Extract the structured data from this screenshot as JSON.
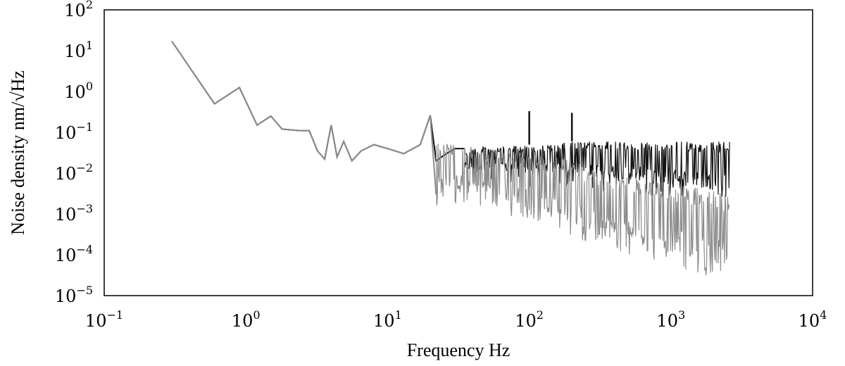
{
  "chart_data": {
    "type": "line",
    "xlabel": "Frequency Hz",
    "ylabel": "Noise density nm/√Hz",
    "x_scale": "log",
    "y_scale": "log",
    "xlim": [
      0.1,
      10000
    ],
    "ylim": [
      1e-05,
      100
    ],
    "x_ticks": [
      {
        "value": 0.1,
        "base": "10",
        "exp": "−1"
      },
      {
        "value": 1,
        "base": "10",
        "exp": "0"
      },
      {
        "value": 10,
        "base": "10",
        "exp": "1"
      },
      {
        "value": 100,
        "base": "10",
        "exp": "2"
      },
      {
        "value": 1000,
        "base": "10",
        "exp": "3"
      },
      {
        "value": 10000,
        "base": "10",
        "exp": "4"
      }
    ],
    "y_ticks": [
      {
        "value": 100,
        "base": "10",
        "exp": "2"
      },
      {
        "value": 10,
        "base": "10",
        "exp": "1"
      },
      {
        "value": 1,
        "base": "10",
        "exp": "0"
      },
      {
        "value": 0.1,
        "base": "10",
        "exp": "−1"
      },
      {
        "value": 0.01,
        "base": "10",
        "exp": "−2"
      },
      {
        "value": 0.001,
        "base": "10",
        "exp": "−3"
      },
      {
        "value": 0.0001,
        "base": "10",
        "exp": "−4"
      },
      {
        "value": 1e-05,
        "base": "10",
        "exp": "−5"
      }
    ],
    "grid": false,
    "legend": "none",
    "series": [
      {
        "color": "#111111",
        "band_from_x": 35,
        "x": [
          0.3,
          0.6,
          0.9,
          1.2,
          1.5,
          1.8,
          2.4,
          2.8,
          3.2,
          3.6,
          4.0,
          4.4,
          4.9,
          5.6,
          6.5,
          8,
          10,
          13,
          17,
          20,
          22,
          26,
          30,
          35,
          50,
          70,
          100,
          150,
          200,
          300,
          500,
          800,
          1200,
          1800,
          2600
        ],
        "y": [
          17,
          0.5,
          1.25,
          0.15,
          0.25,
          0.12,
          0.11,
          0.11,
          0.035,
          0.022,
          0.15,
          0.025,
          0.06,
          0.02,
          0.035,
          0.05,
          0.04,
          0.03,
          0.05,
          0.26,
          0.02,
          0.03,
          0.04,
          0.04,
          0.045,
          0.045,
          0.05,
          0.05,
          0.06,
          0.06,
          0.06,
          0.06,
          0.06,
          0.06,
          0.06
        ],
        "band_x": [
          35,
          50,
          70,
          100,
          150,
          200,
          300,
          500,
          800,
          1200,
          1800,
          2600
        ],
        "band_upper": [
          0.04,
          0.045,
          0.045,
          0.05,
          0.05,
          0.06,
          0.06,
          0.06,
          0.06,
          0.06,
          0.06,
          0.06
        ],
        "band_lower": [
          0.012,
          0.012,
          0.011,
          0.01,
          0.01,
          0.009,
          0.008,
          0.007,
          0.006,
          0.005,
          0.004,
          0.0035
        ],
        "peaks": [
          {
            "x": 100,
            "y": 0.33
          },
          {
            "x": 200,
            "y": 0.3
          }
        ]
      },
      {
        "color": "#8c8c8c",
        "band_from_x": 22,
        "x": [
          0.3,
          0.6,
          0.9,
          1.2,
          1.5,
          1.8,
          2.4,
          2.8,
          3.2,
          3.6,
          4.0,
          4.4,
          4.9,
          5.6,
          6.5,
          8,
          10,
          13,
          17,
          20,
          22
        ],
        "y": [
          17,
          0.5,
          1.25,
          0.15,
          0.25,
          0.12,
          0.11,
          0.11,
          0.035,
          0.022,
          0.15,
          0.025,
          0.06,
          0.02,
          0.035,
          0.05,
          0.04,
          0.03,
          0.05,
          0.26,
          0.003
        ],
        "band_x": [
          22,
          30,
          50,
          70,
          100,
          150,
          200,
          300,
          500,
          800,
          1200,
          1800,
          2600
        ],
        "band_upper": [
          0.06,
          0.05,
          0.04,
          0.035,
          0.03,
          0.025,
          0.02,
          0.012,
          0.008,
          0.006,
          0.005,
          0.004,
          0.003
        ],
        "band_lower": [
          0.003,
          0.004,
          0.003,
          0.002,
          0.0015,
          0.001,
          0.0006,
          0.0003,
          0.0002,
          0.00015,
          0.0001,
          6e-05,
          6e-05
        ]
      }
    ]
  }
}
